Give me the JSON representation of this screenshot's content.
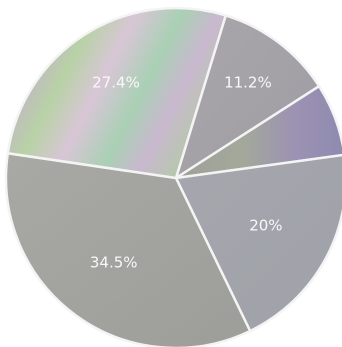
{
  "chart_data": {
    "type": "pie",
    "start_angle_deg": 73,
    "direction": "clockwise",
    "slices": [
      {
        "label": "11.2%",
        "value": 11.2,
        "color": "#a5a2a6"
      },
      {
        "label": "6.9%",
        "value": 6.9,
        "color": "#a49bae",
        "label_visible": false
      },
      {
        "label": "20%",
        "value": 20,
        "color": "#a4a6ad"
      },
      {
        "label": "34.5%",
        "value": 34.5,
        "color": "#a3a39f"
      },
      {
        "label": "27.4%",
        "value": 27.4,
        "color": "#b2bfb2"
      }
    ]
  },
  "colors": {
    "separator": "#f4f4f4",
    "label_text": "#f8f8f8"
  }
}
